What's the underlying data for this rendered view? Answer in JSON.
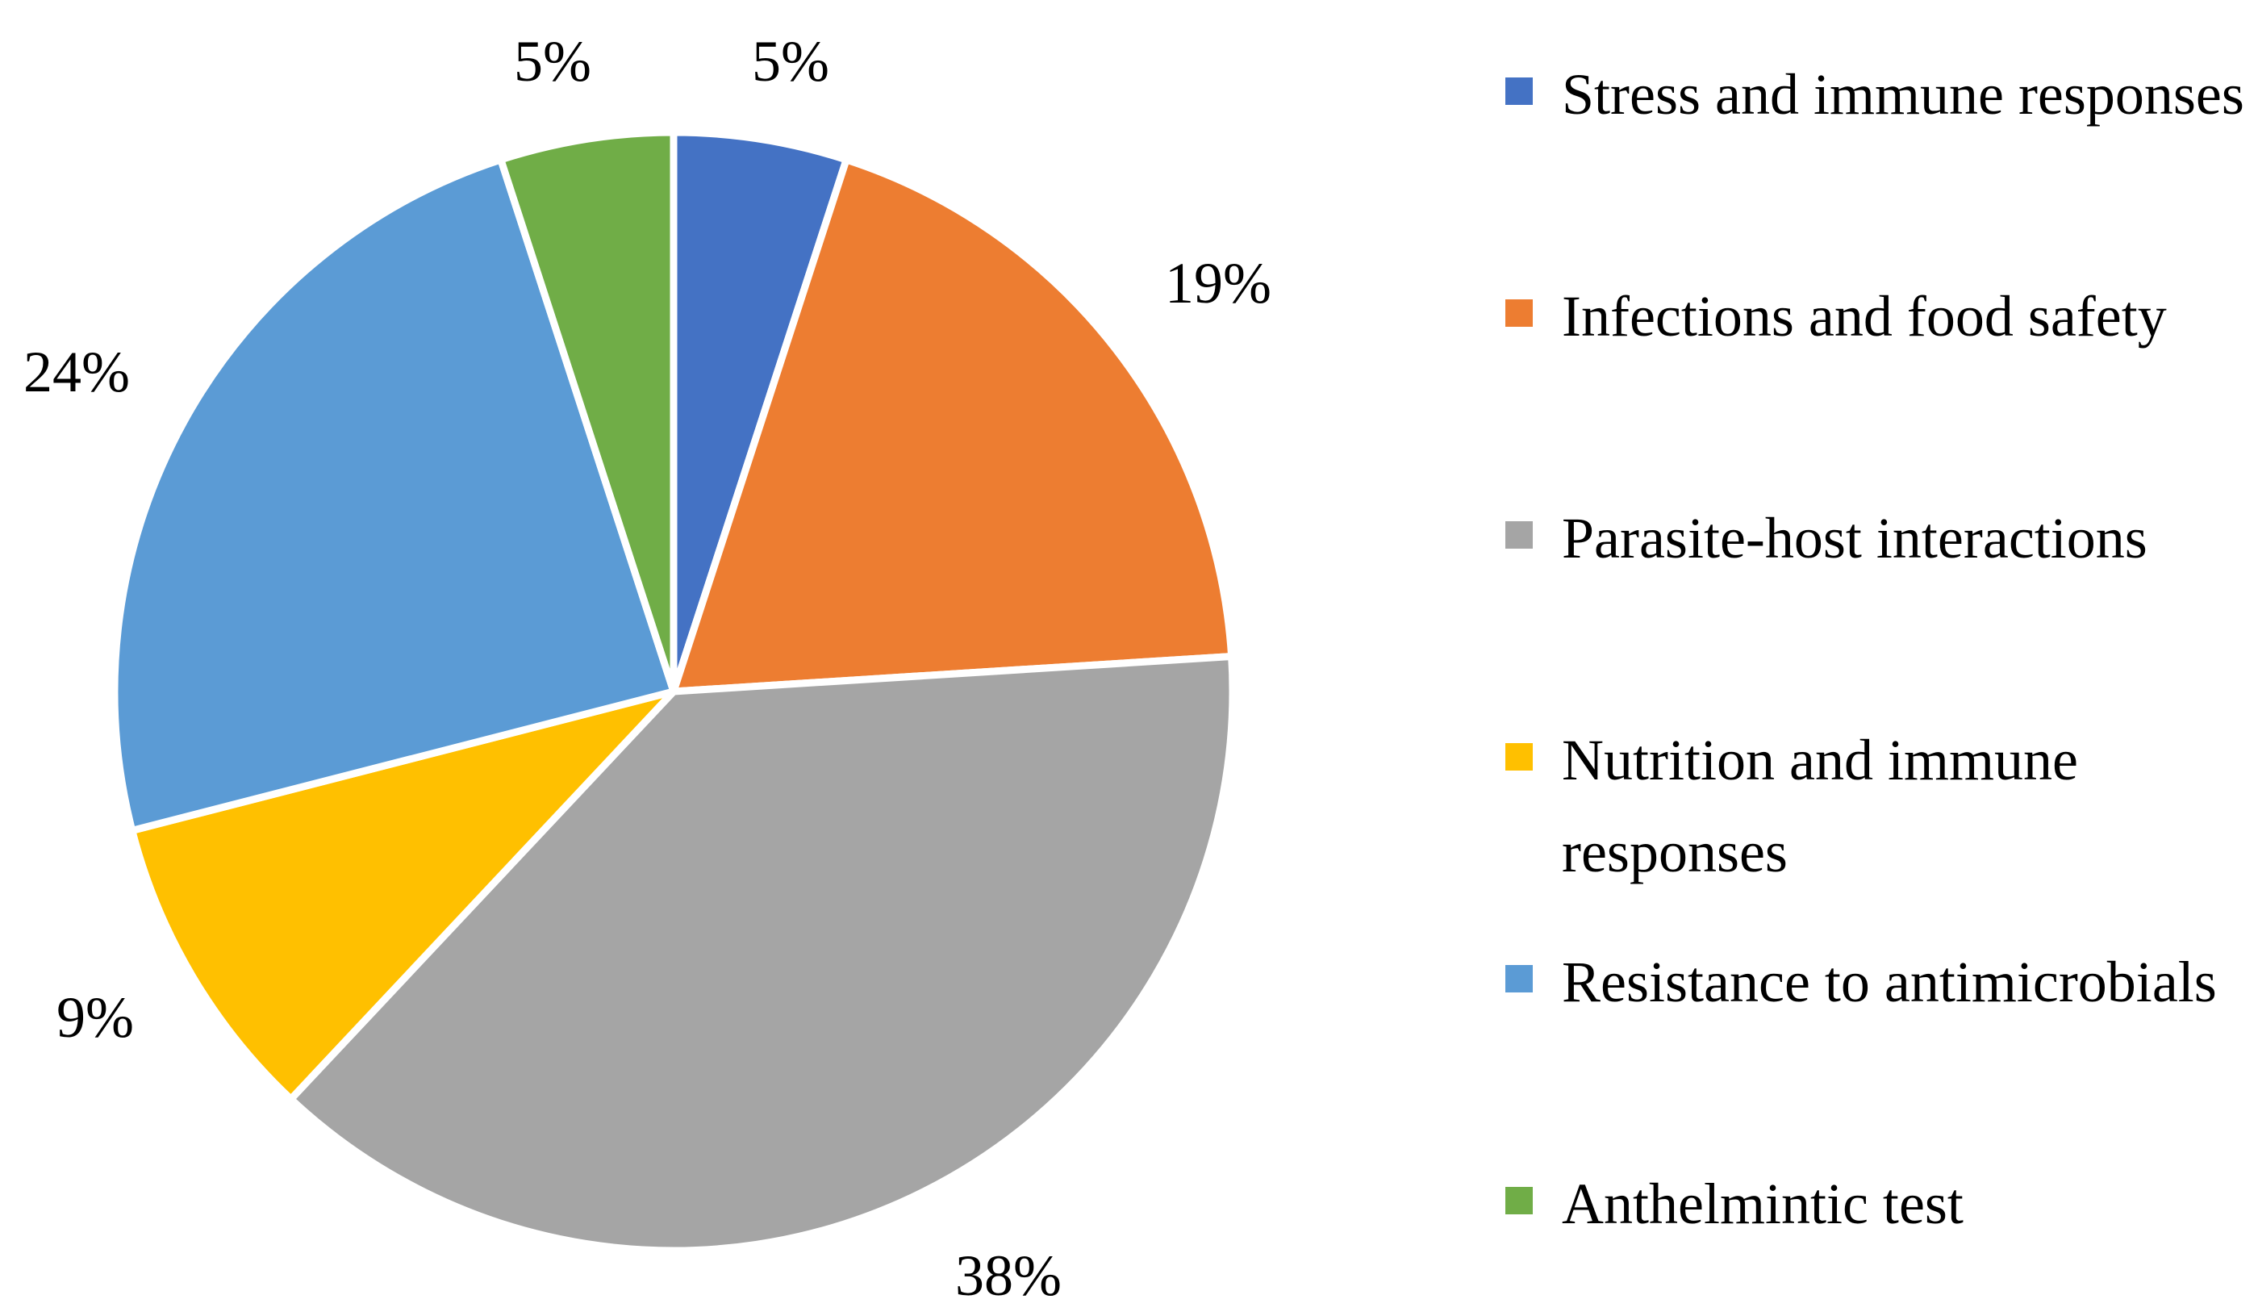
{
  "chart_data": {
    "type": "pie",
    "title": "",
    "start_angle_deg": 0,
    "direction": "clockwise",
    "slices": [
      {
        "label": "Stress and immune responses",
        "value": 5,
        "display": "5%",
        "color": "#4472C4"
      },
      {
        "label": "Infections and food safety",
        "value": 19,
        "display": "19%",
        "color": "#ED7D31"
      },
      {
        "label": "Parasite-host interactions",
        "value": 38,
        "display": "38%",
        "color": "#A5A5A5"
      },
      {
        "label": "Nutrition and immune responses",
        "value": 9,
        "display": "9%",
        "color": "#FFC000"
      },
      {
        "label": "Resistance to antimicrobials",
        "value": 24,
        "display": "24%",
        "color": "#5B9BD5"
      },
      {
        "label": "Anthelmintic test",
        "value": 5,
        "display": "5%",
        "color": "#70AD47"
      }
    ],
    "legend_position": "right"
  }
}
